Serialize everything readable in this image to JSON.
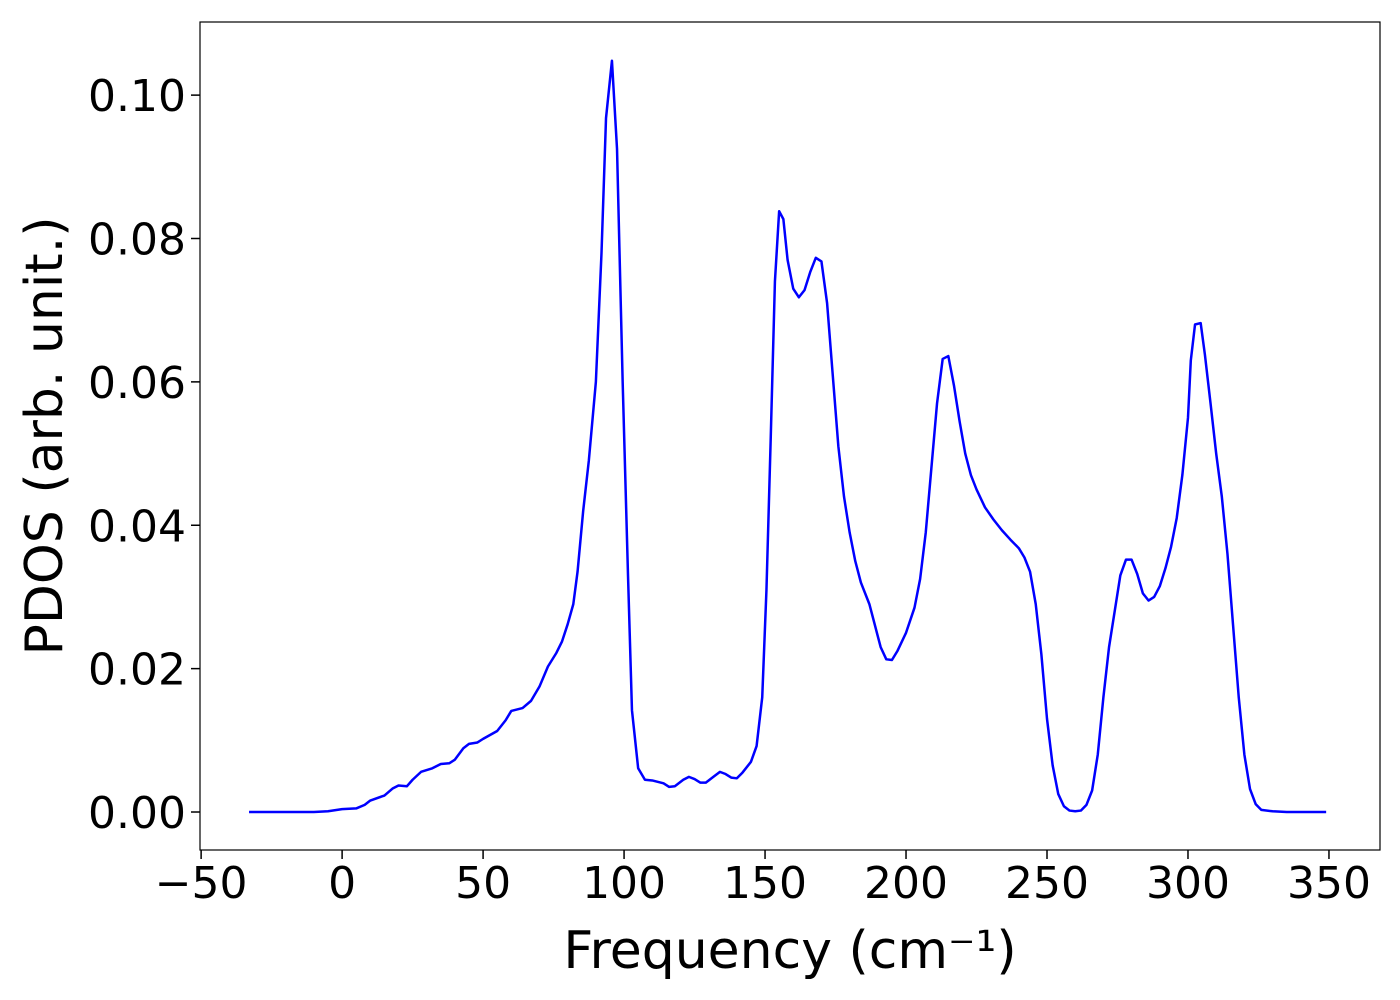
{
  "chart_data": {
    "type": "line",
    "xlabel": "Frequency (cm⁻¹)",
    "ylabel": "PDOS (arb. unit.)",
    "color": "#0000ff",
    "xlim": [
      -50.4,
      368.1
    ],
    "ylim": [
      -0.0053,
      0.1102
    ],
    "xticks": [
      {
        "value": -50,
        "label": "−50"
      },
      0,
      50,
      100,
      150,
      200,
      250,
      300,
      350
    ],
    "yticks": [
      {
        "value": 0,
        "label": "0.00"
      },
      {
        "value": 0.02,
        "label": "0.02"
      },
      {
        "value": 0.04,
        "label": "0.04"
      },
      {
        "value": 0.06,
        "label": "0.06"
      },
      {
        "value": 0.08,
        "label": "0.08"
      },
      {
        "value": 0.1,
        "label": "0.10"
      }
    ],
    "x": [
      -33,
      -10,
      -5,
      0,
      5,
      8,
      10,
      15,
      18,
      20,
      23,
      25,
      28,
      32,
      35,
      38,
      40,
      43,
      45,
      48,
      50,
      55,
      58,
      60,
      64,
      67,
      70,
      73,
      76,
      78,
      80,
      82,
      83.5,
      85.5,
      87.5,
      90,
      92,
      93.6,
      95.7,
      97.5,
      99.5,
      101.4,
      102.8,
      105,
      107.4,
      110,
      114,
      116,
      118,
      121,
      123,
      125,
      127,
      129,
      132,
      134,
      136,
      138,
      140,
      142,
      145,
      147,
      149,
      150.5,
      152,
      153.5,
      155,
      156.5,
      158,
      160,
      162,
      164,
      166,
      168,
      170,
      172,
      174,
      176,
      178,
      180,
      182,
      184,
      187,
      189,
      191,
      193,
      195,
      197,
      200,
      203,
      205,
      207,
      209,
      211,
      213,
      215,
      217,
      219,
      221,
      223,
      225,
      228,
      231,
      234,
      237,
      240,
      242,
      244,
      246,
      248,
      250,
      252,
      254,
      256,
      258,
      260,
      262,
      264,
      266,
      268,
      270,
      272,
      274,
      276,
      278,
      280,
      282,
      284,
      286,
      288,
      290,
      292,
      294,
      296,
      298,
      300,
      301,
      302.5,
      304.5,
      306,
      308,
      310,
      312,
      314,
      316,
      318,
      320,
      322,
      324,
      326,
      330,
      335,
      349
    ],
    "values": [
      0,
      0,
      0.0001,
      0.0004,
      0.0005,
      0.001,
      0.0016,
      0.0023,
      0.0033,
      0.0037,
      0.0036,
      0.0045,
      0.0056,
      0.0061,
      0.0067,
      0.0068,
      0.0073,
      0.0089,
      0.0095,
      0.0097,
      0.0102,
      0.0113,
      0.0128,
      0.0141,
      0.0145,
      0.0155,
      0.0175,
      0.0203,
      0.0222,
      0.0238,
      0.0262,
      0.029,
      0.0335,
      0.042,
      0.049,
      0.06,
      0.078,
      0.0968,
      0.1048,
      0.0925,
      0.06,
      0.033,
      0.0142,
      0.0061,
      0.0045,
      0.0044,
      0.004,
      0.0035,
      0.0036,
      0.0045,
      0.0049,
      0.0046,
      0.0041,
      0.0041,
      0.005,
      0.0056,
      0.0053,
      0.0048,
      0.0047,
      0.0055,
      0.007,
      0.0092,
      0.016,
      0.031,
      0.052,
      0.074,
      0.0838,
      0.0827,
      0.077,
      0.073,
      0.0718,
      0.0728,
      0.0753,
      0.0773,
      0.0768,
      0.071,
      0.061,
      0.051,
      0.044,
      0.039,
      0.035,
      0.032,
      0.029,
      0.026,
      0.023,
      0.0213,
      0.0212,
      0.0225,
      0.025,
      0.0285,
      0.0325,
      0.039,
      0.048,
      0.057,
      0.0632,
      0.0636,
      0.0595,
      0.0545,
      0.05,
      0.047,
      0.045,
      0.0425,
      0.0408,
      0.0393,
      0.038,
      0.0368,
      0.0355,
      0.0335,
      0.029,
      0.022,
      0.013,
      0.0065,
      0.0025,
      0.0008,
      0.0002,
      0.0001,
      0.0002,
      0.001,
      0.003,
      0.008,
      0.016,
      0.023,
      0.028,
      0.033,
      0.0352,
      0.0352,
      0.0332,
      0.0305,
      0.0295,
      0.03,
      0.0315,
      0.034,
      0.037,
      0.041,
      0.047,
      0.055,
      0.063,
      0.068,
      0.0682,
      0.0638,
      0.057,
      0.05,
      0.044,
      0.036,
      0.026,
      0.016,
      0.008,
      0.0032,
      0.0011,
      0.0003,
      0.0001,
      0,
      0
    ]
  }
}
